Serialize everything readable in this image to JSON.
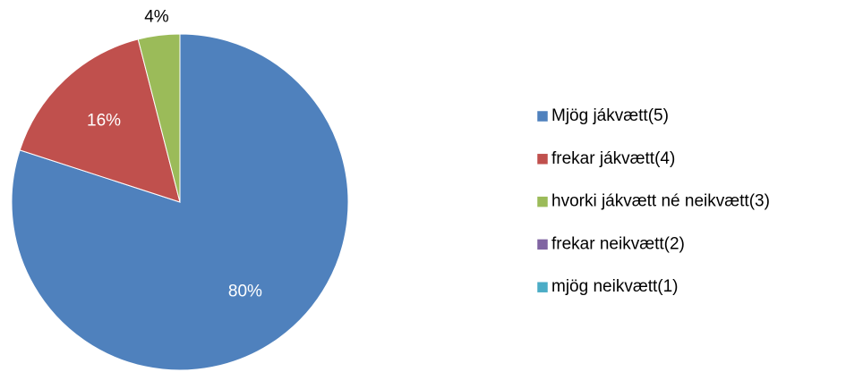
{
  "chart_data": {
    "type": "pie",
    "categories": [
      "Mjög jákvætt(5)",
      "frekar jákvætt(4)",
      "hvorki jákvætt né neikvætt(3)",
      "frekar neikvætt(2)",
      "mjög neikvætt(1)"
    ],
    "values": [
      80,
      16,
      4,
      0,
      0
    ],
    "value_labels": [
      "80%",
      "16%",
      "4%",
      null,
      null
    ],
    "colors": [
      "#4f81bd",
      "#c0504d",
      "#9bbb59",
      "#8064a2",
      "#4bacc6"
    ],
    "legend": "right"
  }
}
